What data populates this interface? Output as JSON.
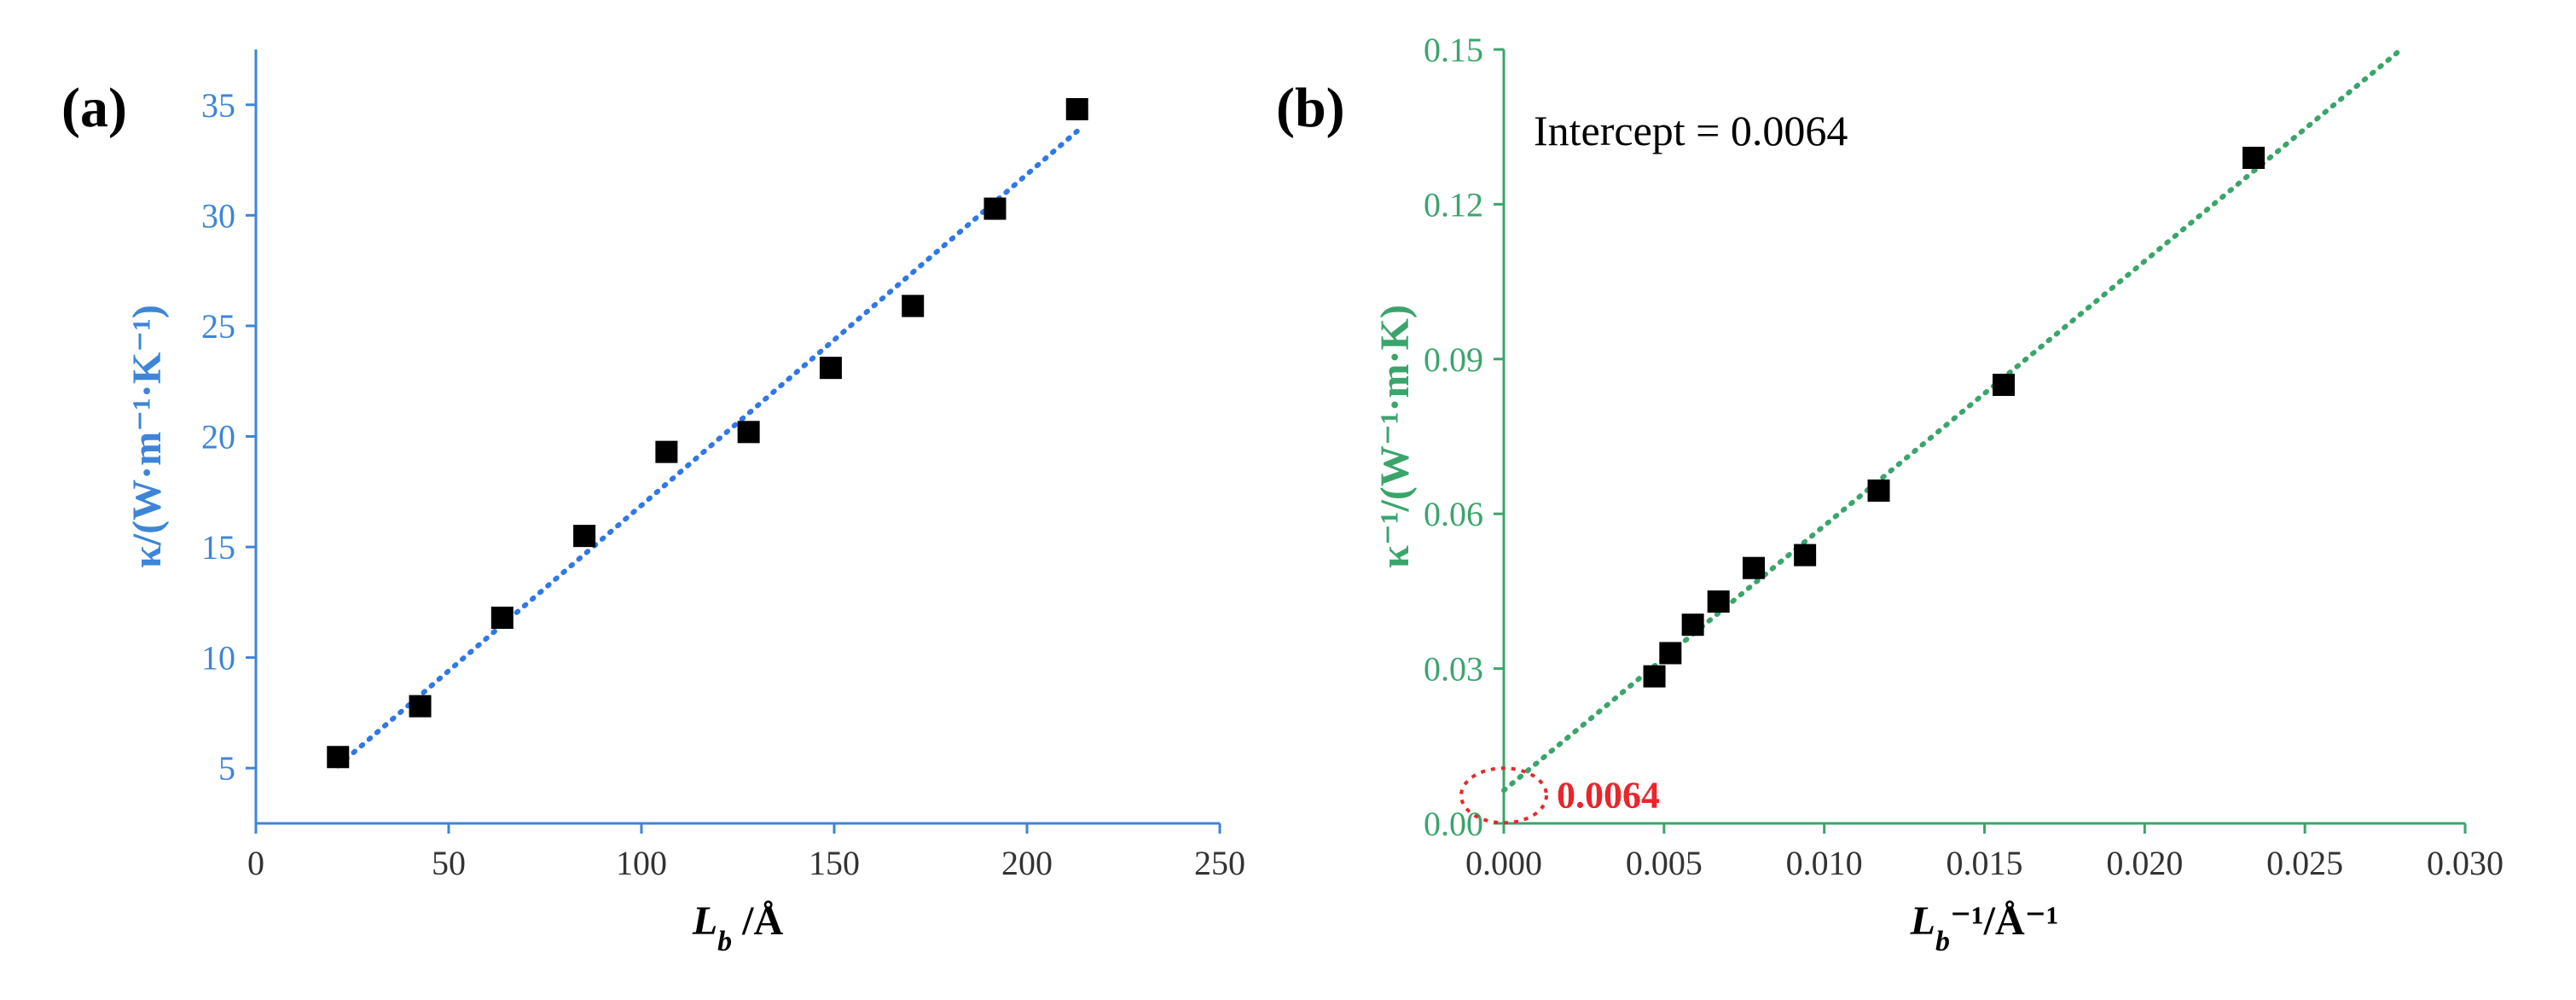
{
  "chart_data": [
    {
      "type": "scatter",
      "panel_label": "(a)",
      "axis_color": "#3d85d8",
      "fit_color": "#2f78e6",
      "marker_color": "#000000",
      "xlabel_main": "L",
      "xlabel_sub": "b",
      "xlabel_tail": " /Å",
      "ylabel": "κ/(W·m⁻¹·K⁻¹)",
      "xlim": [
        0,
        250
      ],
      "ylim": [
        2.5,
        37.5
      ],
      "xticks": [
        0,
        50,
        100,
        150,
        200,
        250
      ],
      "yticks": [
        5,
        10,
        15,
        20,
        25,
        30,
        35
      ],
      "series": [
        {
          "name": "data",
          "x": [
            21.3,
            42.6,
            63.9,
            85.2,
            106.5,
            127.8,
            149.1,
            170.4,
            191.7,
            213.0
          ],
          "y": [
            5.5,
            7.8,
            11.8,
            15.5,
            19.3,
            20.2,
            23.1,
            25.9,
            30.3,
            34.8
          ]
        }
      ],
      "fit": {
        "x": [
          21.3,
          213.0
        ],
        "y": [
          5.1,
          33.8
        ]
      }
    },
    {
      "type": "scatter",
      "panel_label": "(b)",
      "axis_color": "#3aa56b",
      "fit_color": "#3aa56b",
      "marker_color": "#000000",
      "xlabel_main": "L",
      "xlabel_sub": "b",
      "xlabel_tail": "⁻¹/Å⁻¹",
      "ylabel": "κ⁻¹/(W⁻¹·m·K)",
      "xlim": [
        0,
        0.03
      ],
      "ylim": [
        0,
        0.15
      ],
      "xticks": [
        "0.000",
        "0.005",
        "0.010",
        "0.015",
        "0.020",
        "0.025",
        "0.030"
      ],
      "yticks": [
        "0.00",
        "0.03",
        "0.06",
        "0.09",
        "0.12",
        "0.15"
      ],
      "series": [
        {
          "name": "data",
          "x": [
            0.0047,
            0.0052,
            0.0059,
            0.0067,
            0.0078,
            0.0094,
            0.0117,
            0.0156,
            0.0234
          ],
          "y": [
            0.0285,
            0.033,
            0.0385,
            0.043,
            0.0495,
            0.052,
            0.0645,
            0.085,
            0.129
          ]
        }
      ],
      "fit": {
        "x": [
          0.0,
          0.028
        ],
        "y": [
          0.0064,
          0.15
        ]
      },
      "annotation": "Intercept = 0.0064",
      "intercept_label": "0.0064",
      "intercept_value": 0.0064,
      "highlight_color": "#e8262a"
    }
  ]
}
